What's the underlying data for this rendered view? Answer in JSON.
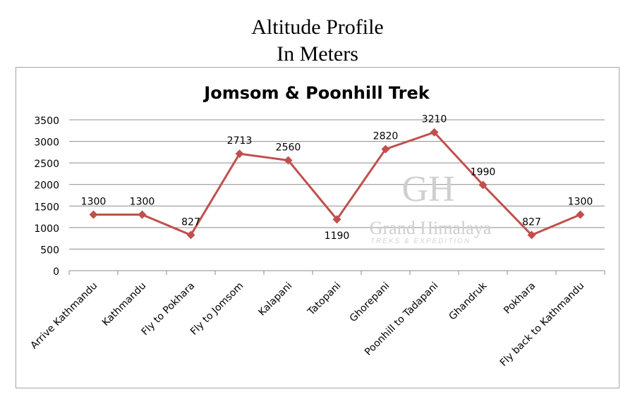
{
  "page": {
    "title_line1": "Altitude Profile",
    "title_line2": "In Meters"
  },
  "watermark": {
    "monogram": "GH",
    "name": "Grand Himalaya",
    "tagline": "TREKS & EXPEDITION"
  },
  "chart_data": {
    "type": "line",
    "title": "Jomsom & Poonhill Trek",
    "xlabel": "",
    "ylabel": "",
    "categories": [
      "Arrive Kathmandu",
      "Kathmandu",
      "Fly to Pokhara",
      "Fly to Jomsom",
      "Kalapani",
      "Tatopani",
      "Ghorepani",
      "Poonhill to Tadapani",
      "Ghandruk",
      "Pokhara",
      "Fly back to Kathmandu"
    ],
    "series": [
      {
        "values": [
          1300,
          1300,
          827,
          2713,
          2560,
          1190,
          2820,
          3210,
          1990,
          827,
          1300
        ],
        "color": "#c0504d",
        "marker": "diamond"
      }
    ],
    "ylim": [
      0,
      3500
    ],
    "yticks": [
      0,
      500,
      1000,
      1500,
      2000,
      2500,
      3000,
      3500
    ],
    "grid": true,
    "data_labels": true,
    "legend": "none"
  }
}
